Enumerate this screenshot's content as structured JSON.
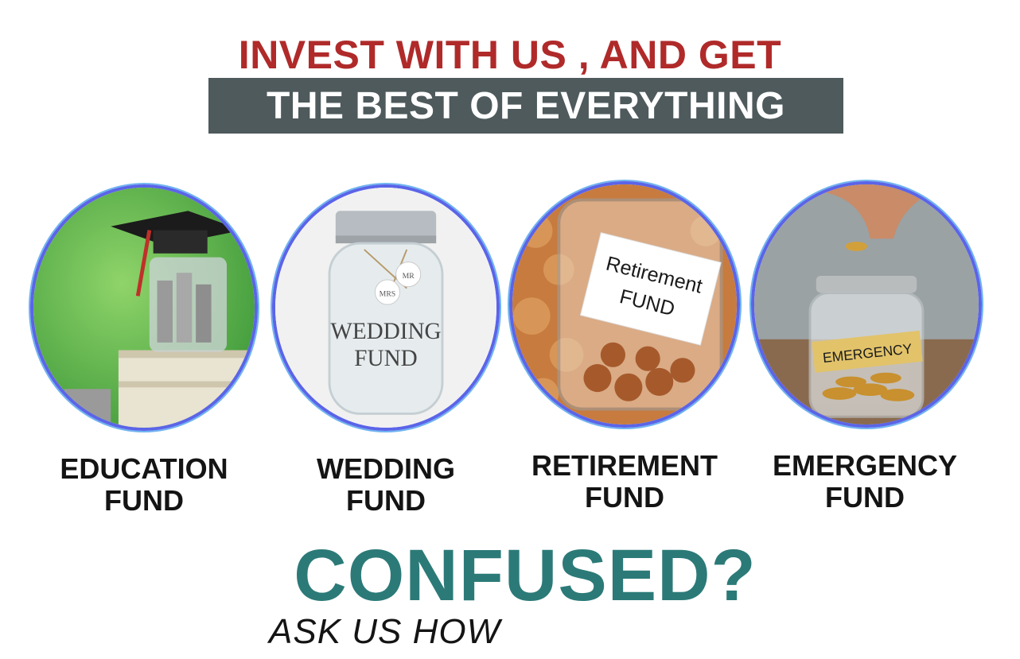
{
  "headline": {
    "line1": "INVEST WITH US , AND GET",
    "line2": "THE BEST OF EVERYTHING"
  },
  "funds": [
    {
      "label_line1": "EDUCATION",
      "label_line2": "FUND",
      "image": "graduation-cap-coin-jar"
    },
    {
      "label_line1": "WEDDING",
      "label_line2": "FUND",
      "image": "wedding-fund-jar",
      "jar_text_line1": "WEDDING",
      "jar_text_line2": "FUND",
      "tag_left": "MRS",
      "tag_right": "MR"
    },
    {
      "label_line1": "RETIREMENT",
      "label_line2": "FUND",
      "image": "retirement-coin-jar",
      "jar_text_line1": "Retirement",
      "jar_text_line2": "FUND"
    },
    {
      "label_line1": "EMERGENCY",
      "label_line2": "FUND",
      "image": "emergency-coin-jar",
      "jar_text": "EMERGENCY"
    }
  ],
  "cta": {
    "title": "CONFUSED?",
    "subtitle": "ASK US HOW"
  },
  "colors": {
    "headline_red": "#b02a2a",
    "headline_bar": "#4e5a5c",
    "circle_border": "#5b64e8",
    "confused_teal": "#2b7a78"
  }
}
